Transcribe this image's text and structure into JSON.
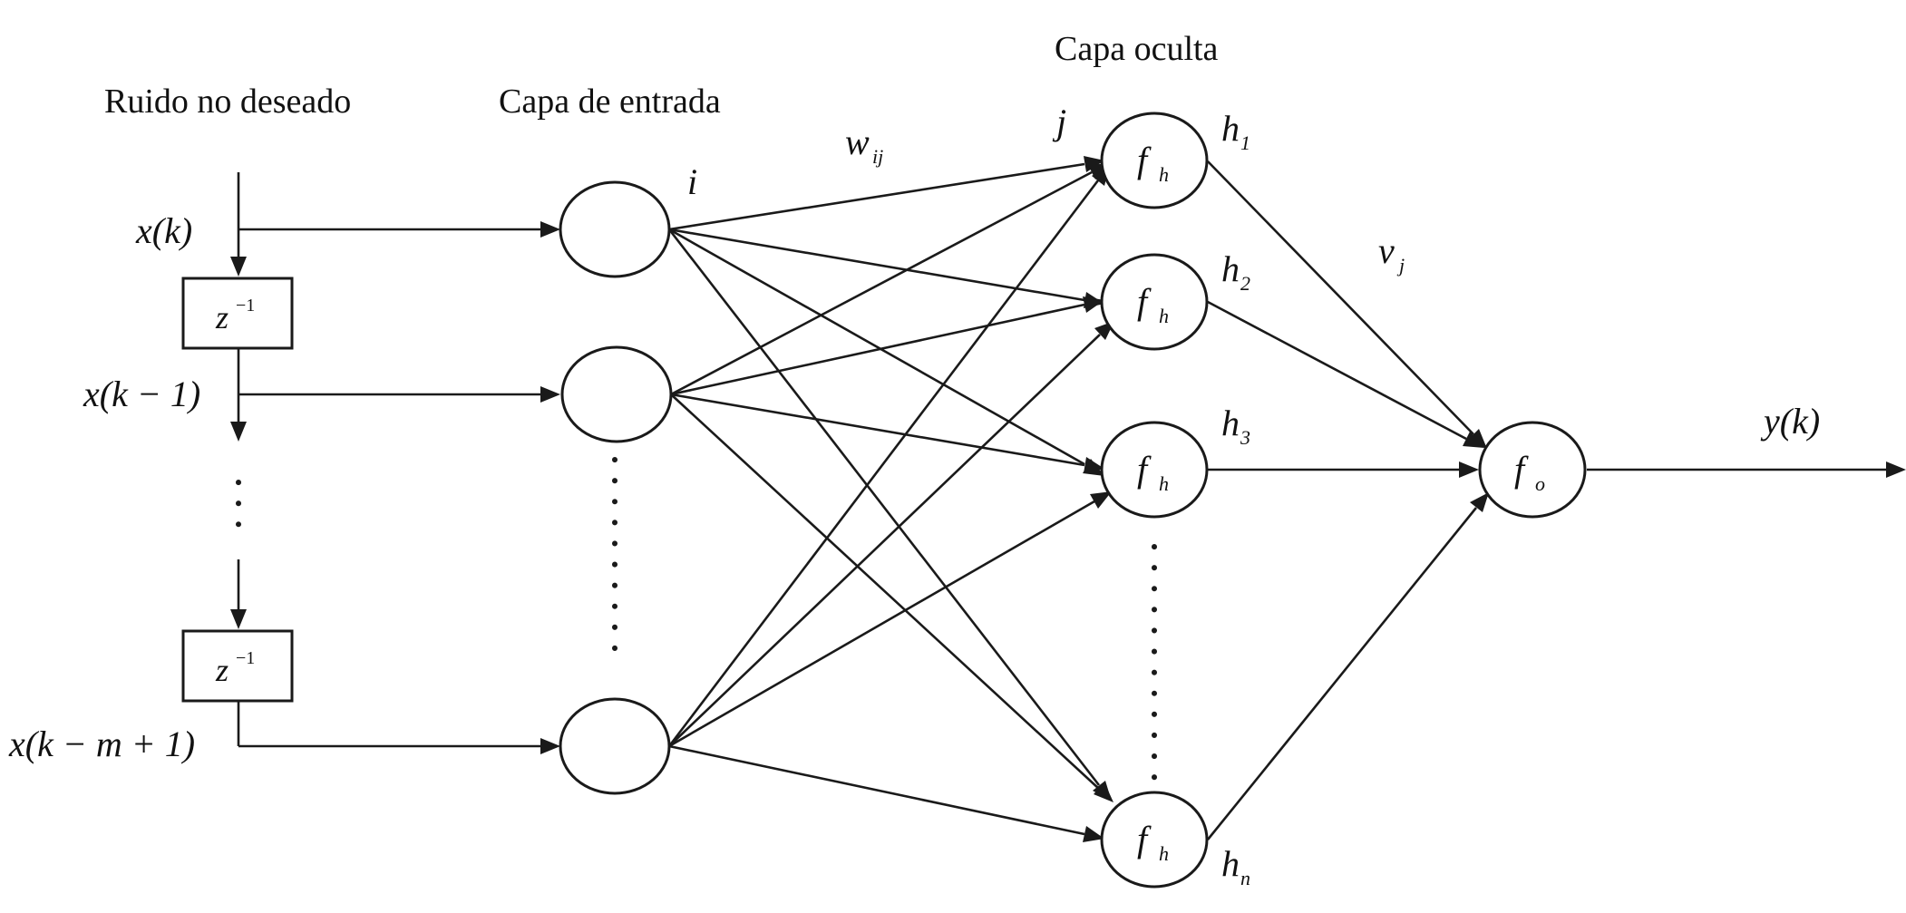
{
  "titles": {
    "noise": "Ruido no deseado",
    "input_layer": "Capa de entrada",
    "hidden_layer": "Capa oculta"
  },
  "inputs": {
    "x0": "x(k)",
    "x1": "x(k − 1)",
    "xm": "x(k − m + 1)"
  },
  "delay": {
    "base": "z",
    "exponent": "−1"
  },
  "labels": {
    "i": "i",
    "j": "j",
    "w": "w",
    "w_sub": "ij",
    "v": "v",
    "v_sub": "j",
    "h": "h",
    "f": "f",
    "f_h_sub": "h",
    "f_o_sub": "o",
    "output": "y(k)"
  },
  "hidden_indices": [
    "1",
    "2",
    "3",
    "n"
  ]
}
